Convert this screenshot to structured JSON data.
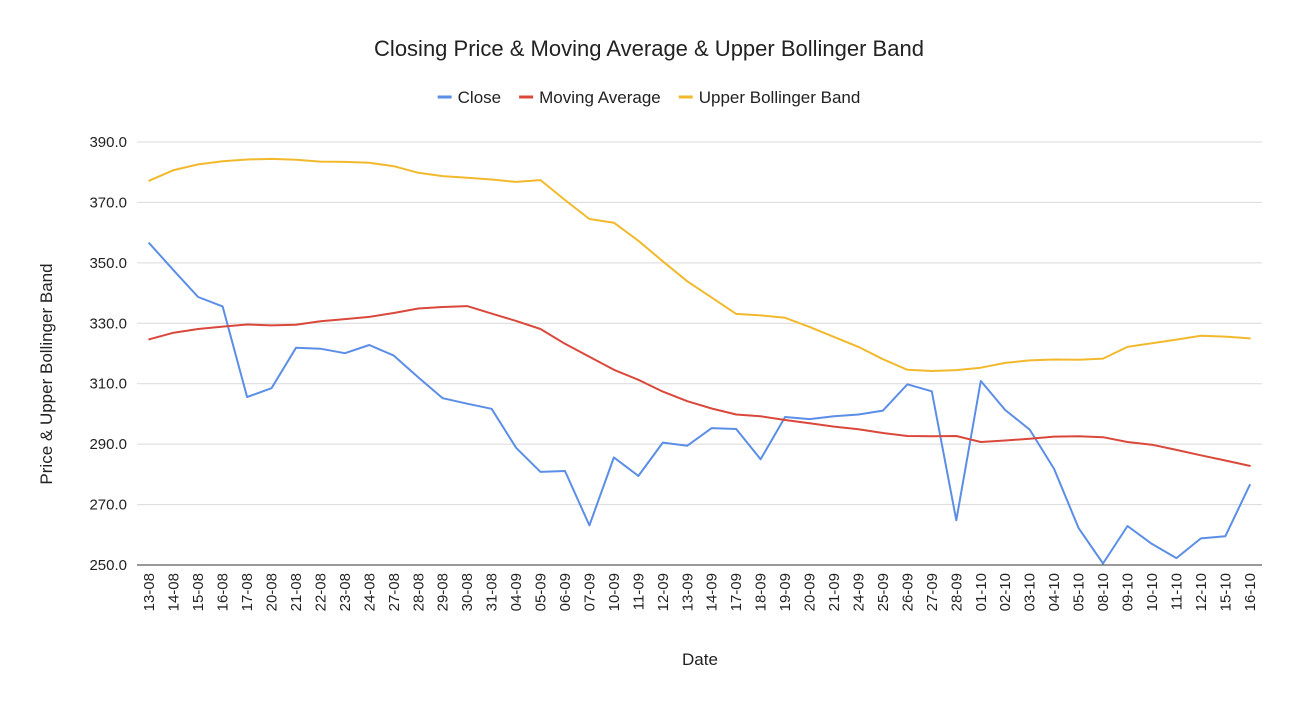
{
  "chart_data": {
    "type": "line",
    "title": "Closing Price & Moving Average & Upper Bollinger Band",
    "xlabel": "Date",
    "ylabel": "Price & Upper Bollinger Band",
    "ylim": [
      250,
      390
    ],
    "yticks": [
      "250.0",
      "270.0",
      "290.0",
      "310.0",
      "330.0",
      "350.0",
      "370.0",
      "390.0"
    ],
    "grid": true,
    "legend_position": "top",
    "categories": [
      "13-08",
      "14-08",
      "15-08",
      "16-08",
      "17-08",
      "20-08",
      "21-08",
      "22-08",
      "23-08",
      "24-08",
      "27-08",
      "28-08",
      "29-08",
      "30-08",
      "31-08",
      "04-09",
      "05-09",
      "06-09",
      "07-09",
      "10-09",
      "11-09",
      "12-09",
      "13-09",
      "14-09",
      "17-09",
      "18-09",
      "19-09",
      "20-09",
      "21-09",
      "24-09",
      "25-09",
      "26-09",
      "27-09",
      "28-09",
      "01-10",
      "02-10",
      "03-10",
      "04-10",
      "05-10",
      "08-10",
      "09-10",
      "10-10",
      "11-10",
      "12-10",
      "15-10",
      "16-10"
    ],
    "series": [
      {
        "name": "Close",
        "color": "#5b8ee6",
        "values": [
          356.5,
          347.5,
          338.7,
          335.6,
          305.6,
          308.5,
          321.9,
          321.6,
          320.1,
          322.8,
          319.3,
          312.1,
          305.2,
          303.4,
          301.7,
          288.8,
          280.8,
          281.1,
          263.1,
          285.6,
          279.5,
          290.5,
          289.5,
          295.3,
          295.0,
          285.0,
          299.0,
          298.3,
          299.2,
          299.8,
          301.1,
          309.8,
          307.5,
          264.8,
          310.9,
          301.3,
          294.8,
          281.8,
          262.2,
          250.5,
          262.9,
          257.0,
          252.3,
          258.8,
          259.5,
          276.5
        ]
      },
      {
        "name": "Moving Average",
        "color": "#d9483b",
        "values": [
          324.7,
          326.9,
          328.1,
          328.9,
          329.6,
          329.3,
          329.5,
          330.7,
          331.4,
          332.1,
          333.4,
          334.9,
          335.4,
          335.7,
          333.2,
          330.8,
          328.1,
          323.2,
          318.9,
          314.6,
          311.3,
          307.4,
          304.2,
          301.8,
          299.8,
          299.2,
          298.0,
          296.9,
          295.8,
          294.9,
          293.7,
          292.7,
          292.6,
          292.7,
          290.7,
          291.2,
          291.8,
          292.5,
          292.6,
          292.3,
          290.7,
          289.8,
          288.1,
          286.3,
          284.6,
          282.8
        ]
      },
      {
        "name": "Upper Bollinger Band",
        "color": "#f2b92d",
        "values": [
          377.2,
          380.7,
          382.6,
          383.6,
          384.2,
          384.4,
          384.1,
          383.5,
          383.4,
          383.1,
          382.0,
          379.8,
          378.7,
          378.2,
          377.6,
          376.8,
          377.4,
          370.8,
          364.5,
          363.3,
          357.3,
          350.5,
          343.9,
          338.5,
          333.1,
          332.6,
          331.8,
          328.8,
          325.5,
          322.2,
          318.1,
          314.6,
          314.2,
          314.5,
          315.3,
          316.9,
          317.7,
          318.0,
          317.9,
          318.3,
          322.2,
          323.4,
          324.6,
          325.9,
          325.6,
          325.0
        ]
      }
    ]
  }
}
